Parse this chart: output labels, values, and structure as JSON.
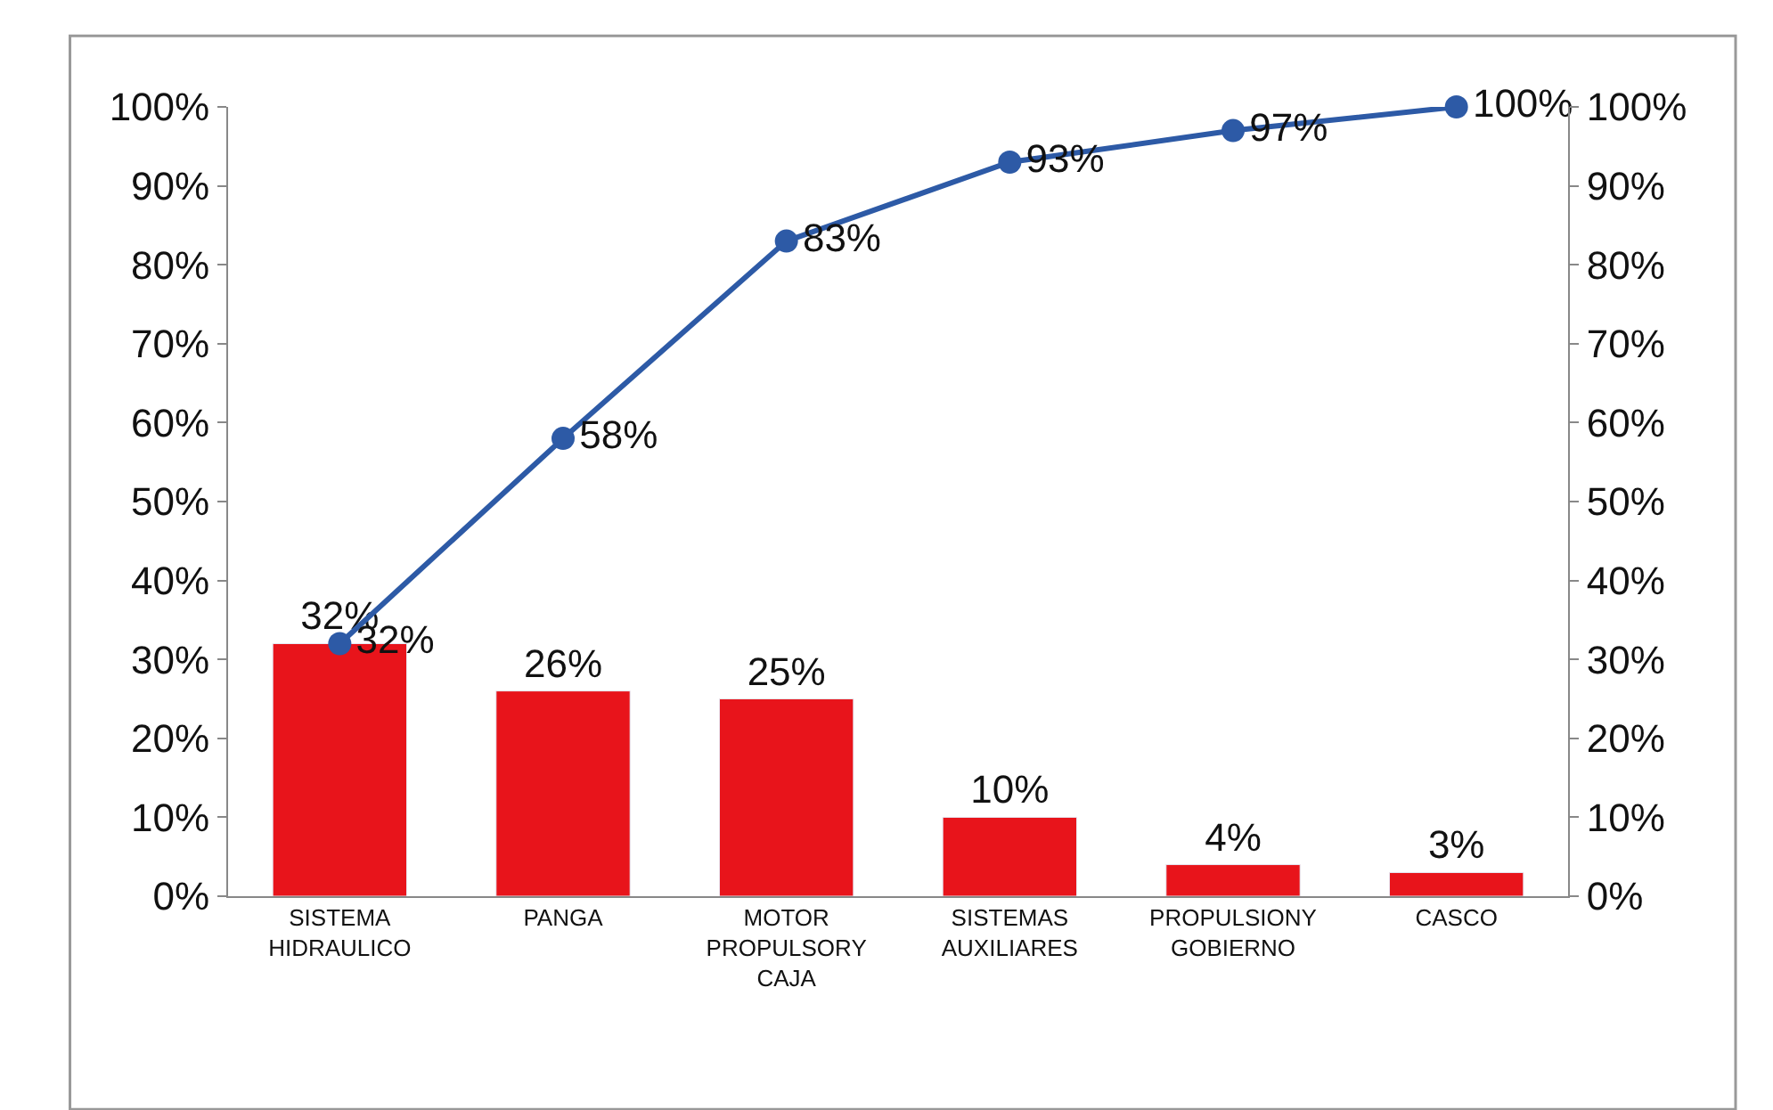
{
  "chart_data": {
    "type": "bar",
    "categories": [
      "SISTEMA\nHIDRAULICO",
      "PANGA",
      "MOTOR\nPROPULSORY\nCAJA",
      "SISTEMAS\nAUXILIARES",
      "PROPULSIONY\nGOBIERNO",
      "CASCO"
    ],
    "series": [
      {
        "color": "#e8141b",
        "values": [
          32,
          26,
          25,
          10,
          4,
          3
        ],
        "value_labels": [
          "32%",
          "26%",
          "25%",
          "10%",
          "4%",
          "3%"
        ]
      },
      {
        "type": "line",
        "axis": "y2",
        "color": "#2d5aa6",
        "values": [
          32,
          58,
          83,
          93,
          97,
          100
        ],
        "value_labels": [
          "32%",
          "58%",
          "83%",
          "93%",
          "97%",
          "100%"
        ],
        "marker": "circle",
        "line_style": "solid"
      }
    ],
    "ylim": [
      0,
      100
    ],
    "yticks": [
      {
        "value": 0,
        "label": "0%"
      },
      {
        "value": 10,
        "label": "10%"
      },
      {
        "value": 20,
        "label": "20%"
      },
      {
        "value": 30,
        "label": "30%"
      },
      {
        "value": 40,
        "label": "40%"
      },
      {
        "value": 50,
        "label": "50%"
      },
      {
        "value": 60,
        "label": "60%"
      },
      {
        "value": 70,
        "label": "70%"
      },
      {
        "value": 80,
        "label": "80%"
      },
      {
        "value": 90,
        "label": "90%"
      },
      {
        "value": 100,
        "label": "100%"
      }
    ],
    "y2lim": [
      0,
      100
    ],
    "y2ticks": [
      {
        "value": 0,
        "label": "0%"
      },
      {
        "value": 10,
        "label": "10%"
      },
      {
        "value": 20,
        "label": "20%"
      },
      {
        "value": 30,
        "label": "30%"
      },
      {
        "value": 40,
        "label": "40%"
      },
      {
        "value": 50,
        "label": "50%"
      },
      {
        "value": 60,
        "label": "60%"
      },
      {
        "value": 70,
        "label": "70%"
      },
      {
        "value": 80,
        "label": "80%"
      },
      {
        "value": 90,
        "label": "90%"
      },
      {
        "value": 100,
        "label": "100%"
      }
    ],
    "legend": false
  }
}
